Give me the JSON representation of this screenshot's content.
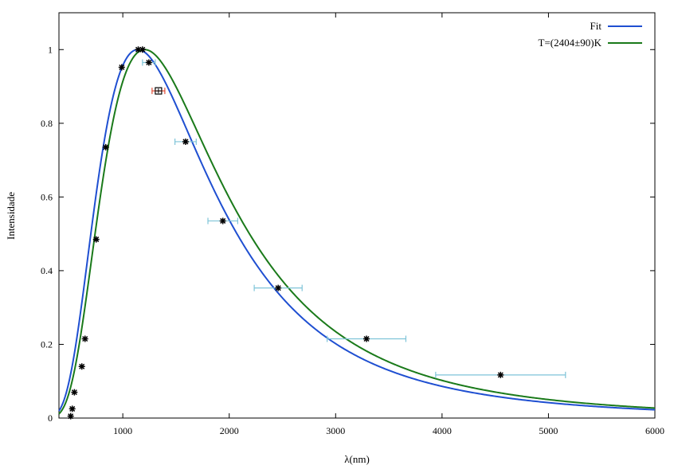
{
  "chart_data": {
    "type": "scatter",
    "xlabel": "λ(nm)",
    "ylabel": "Intensidade",
    "xlim": [
      400,
      6000
    ],
    "ylim": [
      0,
      1.1
    ],
    "xticks": [
      1000,
      2000,
      3000,
      4000,
      5000,
      6000
    ],
    "yticks": [
      0,
      0.2,
      0.4,
      0.6,
      0.8,
      1
    ],
    "grid": false,
    "legend_position": "top-right",
    "series": [
      {
        "name": "Fit",
        "kind": "curve",
        "color": "#1f4fd1",
        "peak_x": 1140,
        "blackbody_T": 2540
      },
      {
        "name": "T=(2404±90)K",
        "kind": "curve",
        "color": "#1a7a1a",
        "peak_x": 1205,
        "blackbody_T": 2404
      }
    ],
    "points": [
      {
        "x": 510,
        "y": 0.005
      },
      {
        "x": 525,
        "y": 0.025
      },
      {
        "x": 545,
        "y": 0.07
      },
      {
        "x": 615,
        "y": 0.14
      },
      {
        "x": 645,
        "y": 0.215
      },
      {
        "x": 750,
        "y": 0.485
      },
      {
        "x": 840,
        "y": 0.735
      },
      {
        "x": 990,
        "y": 0.952
      },
      {
        "x": 1145,
        "y": 1.0
      },
      {
        "x": 1185,
        "y": 1.0
      },
      {
        "x": 1245,
        "y": 0.965,
        "xerr": 60
      },
      {
        "x": 1590,
        "y": 0.75,
        "xerr": 100
      },
      {
        "x": 1940,
        "y": 0.535,
        "xerr": 140
      },
      {
        "x": 2460,
        "y": 0.353,
        "xerr": 225
      },
      {
        "x": 3290,
        "y": 0.215,
        "xerr": 370
      },
      {
        "x": 4550,
        "y": 0.117,
        "xerr": 610
      }
    ],
    "highlight_point": {
      "x": 1335,
      "y": 0.888,
      "xerr": 60
    },
    "colors": {
      "marker": "#000000",
      "errorbar": "#7fc4d8",
      "highlight_errorbar": "#e0503c"
    }
  }
}
